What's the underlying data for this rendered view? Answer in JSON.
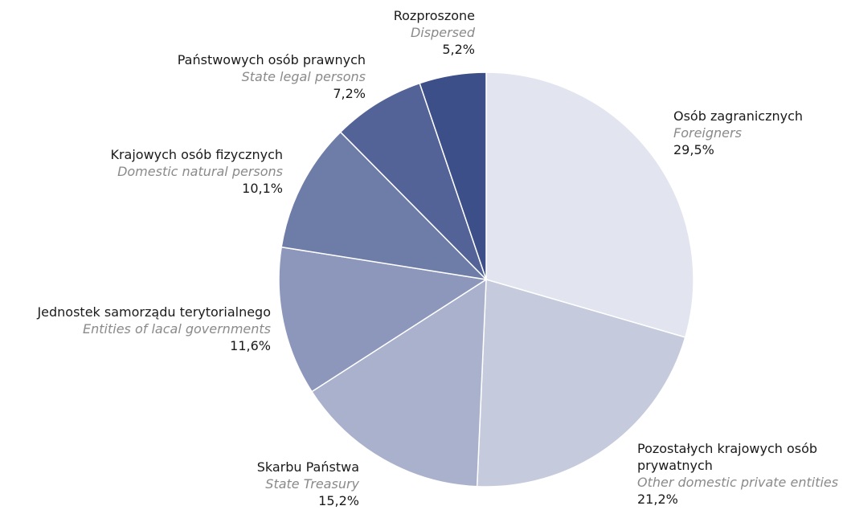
{
  "chart_data": {
    "type": "pie",
    "categories": [
      "Osób zagranicznych",
      "Pozostałych krajowych osób prywatnych",
      "Skarbu Państwa",
      "Jednostek samorządu terytorialnego",
      "Krajowych osób fizycznych",
      "Państwowych osób prawnych",
      "Rozproszone"
    ],
    "category_translations": [
      "Foreigners",
      "Other domestic private entities",
      "State Treasury",
      "Entities of lacal governments",
      "Domestic natural persons",
      "State legal persons",
      "Dispersed"
    ],
    "values": [
      29.5,
      21.2,
      15.2,
      11.6,
      10.1,
      7.2,
      5.2
    ],
    "value_labels": [
      "29,5%",
      "21,2%",
      "15,2%",
      "11,6%",
      "10,1%",
      "7,2%",
      "5,2%"
    ],
    "colors": [
      "#e2e5ef",
      "#c5cadd",
      "#a9b1cc",
      "#8d97bb",
      "#6e7ca8",
      "#536397",
      "#3d4f88"
    ]
  }
}
